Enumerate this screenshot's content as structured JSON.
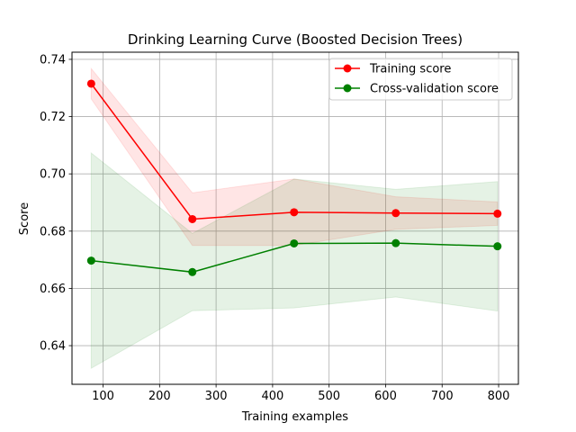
{
  "chart_data": {
    "type": "line",
    "title": "Drinking Learning Curve (Boosted Decision Trees)",
    "xlabel": "Training examples",
    "ylabel": "Score",
    "xlim": [
      45,
      835
    ],
    "ylim": [
      0.6265,
      0.7425
    ],
    "xticks": [
      100,
      200,
      300,
      400,
      500,
      600,
      700,
      800
    ],
    "xtick_labels": [
      "100",
      "200",
      "300",
      "400",
      "500",
      "600",
      "700",
      "800"
    ],
    "yticks": [
      0.64,
      0.66,
      0.68,
      0.7,
      0.72,
      0.74
    ],
    "ytick_labels": [
      "0.64",
      "0.66",
      "0.68",
      "0.70",
      "0.72",
      "0.74"
    ],
    "grid": true,
    "legend_position": "top-right",
    "x": [
      79,
      258,
      438,
      618,
      798
    ],
    "series": [
      {
        "name": "Training score",
        "color": "#ff0000",
        "band_color": "#ff0000",
        "values": [
          0.7315,
          0.6842,
          0.6866,
          0.6863,
          0.6861
        ],
        "upper": [
          0.7368,
          0.6934,
          0.6982,
          0.692,
          0.6902
        ],
        "lower": [
          0.7262,
          0.675,
          0.675,
          0.6806,
          0.682
        ]
      },
      {
        "name": "Cross-validation score",
        "color": "#008000",
        "band_color": "#008000",
        "values": [
          0.6697,
          0.6657,
          0.6757,
          0.6758,
          0.6747
        ],
        "upper": [
          0.7073,
          0.6792,
          0.6982,
          0.6946,
          0.6973
        ],
        "lower": [
          0.6321,
          0.6522,
          0.6532,
          0.657,
          0.6521
        ]
      }
    ]
  }
}
